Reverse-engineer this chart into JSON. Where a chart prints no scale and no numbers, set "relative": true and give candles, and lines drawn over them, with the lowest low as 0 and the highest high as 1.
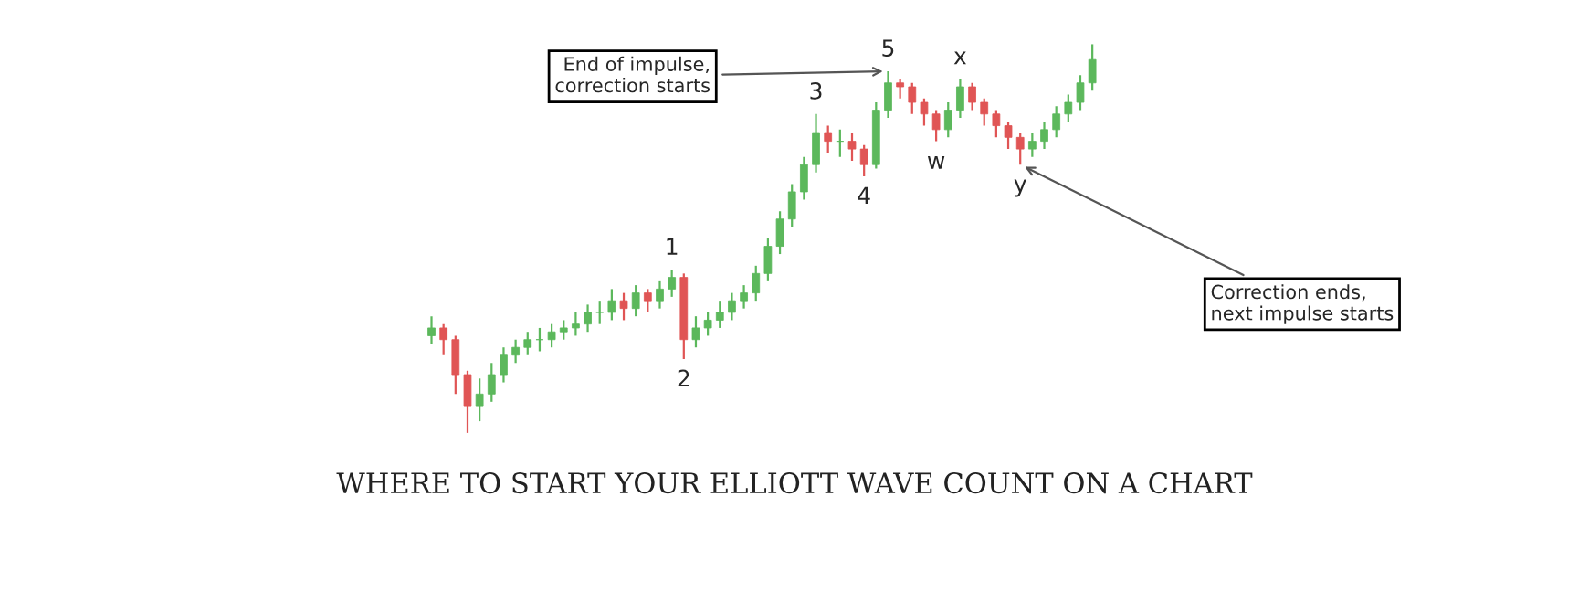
{
  "chart_data": {
    "type": "candlestick",
    "title": "WHERE TO START YOUR ELLIOTT WAVE COUNT ON A CHART",
    "relative": true,
    "categories": [
      null,
      null,
      null,
      null,
      null,
      null,
      null,
      null,
      null,
      null,
      null,
      null,
      null,
      null,
      null,
      null,
      null,
      null,
      null,
      null,
      null,
      null,
      null,
      null,
      null,
      null,
      null,
      null,
      null,
      null,
      null,
      null,
      null,
      null,
      null,
      null,
      null,
      null,
      null,
      null,
      null,
      null,
      null,
      null,
      null,
      null,
      null,
      null,
      null,
      null,
      null,
      null,
      null,
      null,
      null,
      null
    ],
    "ohlc": [
      [
        0.25,
        0.3,
        0.23,
        0.27
      ],
      [
        0.27,
        0.28,
        0.2,
        0.24
      ],
      [
        0.24,
        0.25,
        0.1,
        0.15
      ],
      [
        0.15,
        0.16,
        0.0,
        0.07
      ],
      [
        0.07,
        0.14,
        0.03,
        0.1
      ],
      [
        0.1,
        0.18,
        0.08,
        0.15
      ],
      [
        0.15,
        0.22,
        0.13,
        0.2
      ],
      [
        0.2,
        0.24,
        0.18,
        0.22
      ],
      [
        0.22,
        0.26,
        0.2,
        0.24
      ],
      [
        0.24,
        0.27,
        0.21,
        0.24
      ],
      [
        0.24,
        0.28,
        0.22,
        0.26
      ],
      [
        0.26,
        0.29,
        0.24,
        0.27
      ],
      [
        0.27,
        0.31,
        0.25,
        0.28
      ],
      [
        0.28,
        0.33,
        0.26,
        0.31
      ],
      [
        0.31,
        0.34,
        0.28,
        0.31
      ],
      [
        0.31,
        0.37,
        0.29,
        0.34
      ],
      [
        0.34,
        0.36,
        0.29,
        0.32
      ],
      [
        0.32,
        0.38,
        0.3,
        0.36
      ],
      [
        0.36,
        0.37,
        0.31,
        0.34
      ],
      [
        0.34,
        0.39,
        0.32,
        0.37
      ],
      [
        0.37,
        0.42,
        0.35,
        0.4
      ],
      [
        0.4,
        0.41,
        0.19,
        0.24
      ],
      [
        0.24,
        0.3,
        0.22,
        0.27
      ],
      [
        0.27,
        0.31,
        0.25,
        0.29
      ],
      [
        0.29,
        0.34,
        0.27,
        0.31
      ],
      [
        0.31,
        0.36,
        0.29,
        0.34
      ],
      [
        0.34,
        0.38,
        0.32,
        0.36
      ],
      [
        0.36,
        0.43,
        0.34,
        0.41
      ],
      [
        0.41,
        0.5,
        0.39,
        0.48
      ],
      [
        0.48,
        0.57,
        0.46,
        0.55
      ],
      [
        0.55,
        0.64,
        0.53,
        0.62
      ],
      [
        0.62,
        0.71,
        0.6,
        0.69
      ],
      [
        0.69,
        0.82,
        0.67,
        0.77
      ],
      [
        0.77,
        0.79,
        0.72,
        0.75
      ],
      [
        0.75,
        0.78,
        0.71,
        0.75
      ],
      [
        0.75,
        0.77,
        0.7,
        0.73
      ],
      [
        0.73,
        0.74,
        0.66,
        0.69
      ],
      [
        0.69,
        0.85,
        0.68,
        0.83
      ],
      [
        0.83,
        0.93,
        0.81,
        0.9
      ],
      [
        0.9,
        0.91,
        0.86,
        0.89
      ],
      [
        0.89,
        0.9,
        0.82,
        0.85
      ],
      [
        0.85,
        0.86,
        0.79,
        0.82
      ],
      [
        0.82,
        0.83,
        0.75,
        0.78
      ],
      [
        0.78,
        0.85,
        0.76,
        0.83
      ],
      [
        0.83,
        0.91,
        0.81,
        0.89
      ],
      [
        0.89,
        0.9,
        0.83,
        0.85
      ],
      [
        0.85,
        0.86,
        0.79,
        0.82
      ],
      [
        0.82,
        0.83,
        0.76,
        0.79
      ],
      [
        0.79,
        0.8,
        0.73,
        0.76
      ],
      [
        0.76,
        0.77,
        0.69,
        0.73
      ],
      [
        0.73,
        0.77,
        0.71,
        0.75
      ],
      [
        0.75,
        0.8,
        0.73,
        0.78
      ],
      [
        0.78,
        0.84,
        0.76,
        0.82
      ],
      [
        0.82,
        0.87,
        0.8,
        0.85
      ],
      [
        0.85,
        0.92,
        0.83,
        0.9
      ],
      [
        0.9,
        1.0,
        0.88,
        0.96
      ]
    ],
    "annotations": [
      {
        "text": "1",
        "y": 0.42
      },
      {
        "text": "2",
        "y": 0.19
      },
      {
        "text": "3",
        "y": 0.82
      },
      {
        "text": "4",
        "y": 0.66
      },
      {
        "text": "5",
        "y": 0.93
      },
      {
        "text": "w",
        "y": 0.75
      },
      {
        "text": "x",
        "y": 0.91
      },
      {
        "text": "y",
        "y": 0.69
      },
      "End of impulse,\ncorrection starts",
      "Correction ends,\nnext impulse starts"
    ]
  }
}
